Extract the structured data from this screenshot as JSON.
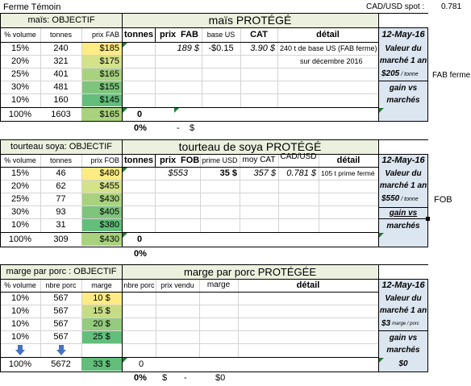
{
  "title": "Ferme Témoin",
  "spot": {
    "label": "CAD/USD spot :",
    "value": "0.781"
  },
  "colors": {
    "header_bg": "#ebf1de",
    "side_bg": "#dce6f1",
    "grad": [
      "#ffeb84",
      "#d4e28a",
      "#a9d27f",
      "#7fc47d",
      "#63be7b"
    ]
  },
  "sections": [
    {
      "obj_title": "maïs: OBJECTIF",
      "prot_title": "maïs  PROTÉGÉ",
      "obj_headers": [
        "% volume",
        "tonnes",
        "prix FAB"
      ],
      "prot_headers": [
        "tonnes",
        "prix",
        "FAB",
        "base US",
        "CAT",
        "détail"
      ],
      "rows": [
        {
          "pct": "15%",
          "qty": "240",
          "price": "$185"
        },
        {
          "pct": "20%",
          "qty": "321",
          "price": "$175"
        },
        {
          "pct": "25%",
          "qty": "401",
          "price": "$165"
        },
        {
          "pct": "30%",
          "qty": "481",
          "price": "$155"
        },
        {
          "pct": "10%",
          "qty": "160",
          "price": "$145"
        }
      ],
      "prot_row": {
        "prix": "189 $",
        "base": "-$0.15",
        "cat": "3.90 $",
        "detail": "240 t de base US (FAB ferme)"
      },
      "detail2": "sur décembre 2016",
      "total": {
        "pct": "100%",
        "qty": "1603",
        "price": "$165",
        "prot_qty": "0"
      },
      "below": {
        "pct": "0%",
        "dash": "-",
        "dollar": "$"
      },
      "side": {
        "date": "12-May-16",
        "l1": "Valeur du",
        "l2": "marché 1 an",
        "value": "$205",
        "unit": "/ tonne",
        "g1": "gain vs",
        "g2": "marchés"
      },
      "outside": "FAB ferme"
    },
    {
      "obj_title": "tourteau soya: OBJECTIF",
      "prot_title": "tourteau de soya  PROTÉGÉ",
      "obj_headers": [
        "% volume",
        "tonnes",
        "prix FOB"
      ],
      "prot_headers": [
        "tonnes",
        "prix",
        "FOB",
        "prime USD",
        "moy CAT",
        "CAD/USD",
        "détail"
      ],
      "rows": [
        {
          "pct": "15%",
          "qty": "46",
          "price": "$480"
        },
        {
          "pct": "20%",
          "qty": "62",
          "price": "$455"
        },
        {
          "pct": "25%",
          "qty": "77",
          "price": "$430"
        },
        {
          "pct": "30%",
          "qty": "93",
          "price": "$405"
        },
        {
          "pct": "10%",
          "qty": "31",
          "price": "$380"
        }
      ],
      "prot_row": {
        "prix": "$553",
        "prime": "35 $",
        "moy": "357 $",
        "cad": "0.781 $",
        "detail": "105 t prime fermé"
      },
      "total": {
        "pct": "100%",
        "qty": "309",
        "price": "$430",
        "prot_qty": "0"
      },
      "below": {
        "pct": "0%"
      },
      "side": {
        "date": "12-May-16",
        "l1": "Valeur du",
        "l2": "marché 1 an",
        "value": "$550",
        "unit": "/ tonne",
        "g1": "gain vs",
        "g2": "marchés"
      },
      "outside": "FOB"
    },
    {
      "obj_title": "marge par porc : OBJECTIF",
      "prot_title": "marge par porc PROTÉGÉE",
      "obj_headers": [
        "% volume",
        "nbre porc",
        "marge"
      ],
      "prot_headers": [
        "nbre porc",
        "prix vendu",
        "marge",
        "détail"
      ],
      "rows": [
        {
          "pct": "10%",
          "qty": "567",
          "price": "10 $"
        },
        {
          "pct": "10%",
          "qty": "567",
          "price": "15 $"
        },
        {
          "pct": "10%",
          "qty": "567",
          "price": "20 $"
        },
        {
          "pct": "10%",
          "qty": "567",
          "price": "25 $"
        }
      ],
      "total": {
        "pct": "100%",
        "qty": "5672",
        "price": "33 $",
        "prot_qty": "0"
      },
      "below": {
        "pct": "0%",
        "dollar": "$",
        "dash": "-",
        "zero": "$0"
      },
      "side": {
        "date": "12-May-16",
        "l1": "Valeur du",
        "l2": "marché 1 an",
        "value": "$3",
        "unit": "marge / porc",
        "g1": "gain vs",
        "g2": "marchés",
        "g3": "$0"
      }
    }
  ]
}
